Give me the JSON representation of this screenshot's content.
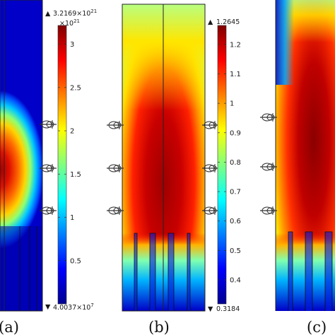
{
  "colors": {
    "jet": [
      "#00008f",
      "#0000ff",
      "#00bfff",
      "#66ffcc",
      "#ffff00",
      "#ff7f00",
      "#ff0000",
      "#8b0000"
    ],
    "background": "#ffffff",
    "line": "#222222"
  },
  "panels": [
    {
      "id": "a",
      "caption": "(a)",
      "colorbar": {
        "max_label": "3.2169×10",
        "max_exp": "21",
        "unit_label": "×10",
        "unit_exp": "21",
        "min_label": "4.0037×10",
        "min_exp": "7",
        "ticks": [
          "3",
          "2.5",
          "2",
          "1.5",
          "1",
          "0.5"
        ],
        "tick_values": [
          3,
          2.5,
          2,
          1.5,
          1,
          0.5
        ],
        "range": [
          0.0,
          3.2169
        ]
      }
    },
    {
      "id": "b",
      "caption": "(b)",
      "colorbar": {
        "max_label": "1.2645",
        "min_label": "0.3184",
        "ticks": [
          "1.2",
          "1.1",
          "1",
          "0.9",
          "0.8",
          "0.7",
          "0.6",
          "0.5",
          "0.4"
        ],
        "tick_values": [
          1.2,
          1.1,
          1.0,
          0.9,
          0.8,
          0.7,
          0.6,
          0.5,
          0.4
        ],
        "range": [
          0.3184,
          1.2645
        ]
      }
    },
    {
      "id": "c",
      "caption": "(c)"
    }
  ]
}
